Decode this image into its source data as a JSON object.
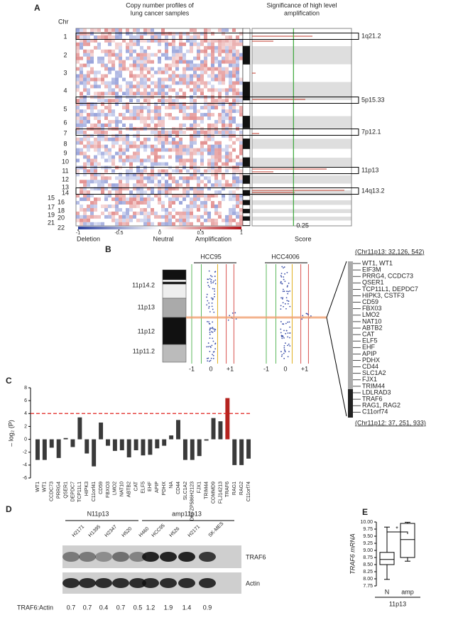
{
  "panels": {
    "A": {
      "label": "A",
      "chr_title": "Chr",
      "left_title": [
        "Copy number profiles of",
        "lung cancer samples"
      ],
      "right_title": [
        "Significance of high level",
        "amplification"
      ],
      "chromosomes": [
        "1",
        "2",
        "3",
        "4",
        "5",
        "6",
        "7",
        "8",
        "9",
        "10",
        "11",
        "12",
        "13",
        "14",
        "15",
        "16",
        "17",
        "18",
        "19",
        "20",
        "21",
        "22"
      ],
      "regions": [
        "1q21.2",
        "5p15.33",
        "7p12.1",
        "11p13",
        "14q13.2"
      ],
      "scale_ticks": [
        -1,
        -0.5,
        0,
        0.5,
        1
      ],
      "scale_labels": [
        "Deletion",
        "Neutral",
        "Amplification"
      ],
      "score_tick": 0.25,
      "score_label": "Score"
    },
    "B": {
      "label": "B",
      "samples": [
        "HCC95",
        "HCC4006"
      ],
      "bands": [
        "11p14.2",
        "11p13",
        "11p12",
        "11p11.2"
      ],
      "ticks": [
        -1,
        0,
        {
          "value": 1,
          "label": "+1"
        }
      ],
      "top_range": "(Chr11p13: 32,126, 542)",
      "genes": [
        "WT1, WT1",
        "EIF3M",
        "PRRG4, CCDC73",
        "QSER1",
        "TCP11L1, DEPDC7",
        "HIPK3, CSTF3",
        "CD59",
        "FBX03",
        "LMO2",
        "NAT10",
        "ABTB2",
        "CAT",
        "ELF5",
        "EHF",
        "APIP",
        "PDHX",
        "CD44",
        "SLC1A2",
        "FJX1",
        "TRIM44",
        "LDLRAD3",
        "TRAF6",
        "RAG1, RAG2",
        "C11orf74"
      ],
      "bottom_range": "(Chr11p12: 37, 251, 933)"
    },
    "D": {
      "label": "D",
      "groups": [
        "N11p13",
        "amp11p13"
      ],
      "cell_lines": [
        "H2171",
        "H1395",
        "H2347",
        "H520",
        "H460",
        "HCC95",
        "H526",
        "H2171",
        "SK-MES"
      ],
      "bands": [
        "TRAF6",
        "Actin"
      ],
      "ratio_label": "TRAF6:Actin",
      "ratios": [
        0.7,
        0.7,
        0.4,
        0.7,
        0.5,
        1.2,
        1.9,
        1.4,
        0.9
      ]
    }
  },
  "chart_data": [
    {
      "type": "bar",
      "panel": "C",
      "ylabel": "– log₂ (P)",
      "categories": [
        "WT1",
        "WT1",
        "CCDC73",
        "PRRG4",
        "QSER1",
        "DEPDC7",
        "TCP11L1",
        "HIPK3",
        "C11orf41",
        "CD59",
        "FBXO3",
        "LMO2",
        "NAT10",
        "ABTB2",
        "CAT",
        "ELF5",
        "EHF",
        "APIP",
        "PDHX",
        "NA",
        "CD44",
        "SLC1A2",
        "DKFZP586H2123",
        "FJX1",
        "TRIM44",
        "COMMD9",
        "FLJ14213",
        "TRAF6",
        "RAG1",
        "RAG2",
        "C11orf74"
      ],
      "values": [
        -3.2,
        -3.2,
        -1.3,
        -2.9,
        0.2,
        -1.2,
        3.4,
        -2.2,
        -4.2,
        2.6,
        -1.0,
        -1.8,
        -1.7,
        -2.8,
        -1.7,
        -2.5,
        -2.4,
        -1.4,
        -1.0,
        0.6,
        3.0,
        -3.2,
        -3.2,
        -2.6,
        -0.2,
        3.3,
        2.8,
        6.4,
        -4.0,
        -4.0,
        -3.0
      ],
      "colors": [
        "#3a3a3a",
        "#3a3a3a",
        "#3a3a3a",
        "#3a3a3a",
        "#3a3a3a",
        "#3a3a3a",
        "#3a3a3a",
        "#3a3a3a",
        "#3a3a3a",
        "#3a3a3a",
        "#3a3a3a",
        "#3a3a3a",
        "#3a3a3a",
        "#3a3a3a",
        "#3a3a3a",
        "#3a3a3a",
        "#3a3a3a",
        "#3a3a3a",
        "#3a3a3a",
        "#3a3a3a",
        "#3a3a3a",
        "#3a3a3a",
        "#3a3a3a",
        "#3a3a3a",
        "#3a3a3a",
        "#3a3a3a",
        "#3a3a3a",
        "#b5231f",
        "#3a3a3a",
        "#3a3a3a",
        "#3a3a3a"
      ],
      "ylim": [
        -6,
        8
      ],
      "yticks": [
        -6,
        -4,
        -2,
        0,
        2,
        4,
        6,
        8
      ],
      "threshold": 4,
      "threshold_color": "#e0201b"
    },
    {
      "type": "box",
      "panel": "E",
      "ylabel": "TRAF6 mRNA",
      "xlabel": "11p13",
      "annotation": "*",
      "categories": [
        "N",
        "amp"
      ],
      "color": "#ffffff",
      "boxes": [
        {
          "min": 7.98,
          "q1": 8.5,
          "median": 8.68,
          "q3": 8.93,
          "max": 9.82
        },
        {
          "min": 8.62,
          "q1": 8.75,
          "median": 9.38,
          "q3": 9.95,
          "max": 9.99
        }
      ],
      "ylim": [
        7.75,
        10
      ],
      "yticks": [
        7.75,
        {
          "value": 8,
          "label": "8.00"
        },
        8.25,
        {
          "value": 8.5,
          "label": "8.50"
        },
        8.75,
        {
          "value": 9,
          "label": "9.00"
        },
        9.25,
        {
          "value": 9.5,
          "label": "9.50"
        },
        9.75,
        {
          "value": 10,
          "label": "10.00"
        }
      ]
    }
  ]
}
